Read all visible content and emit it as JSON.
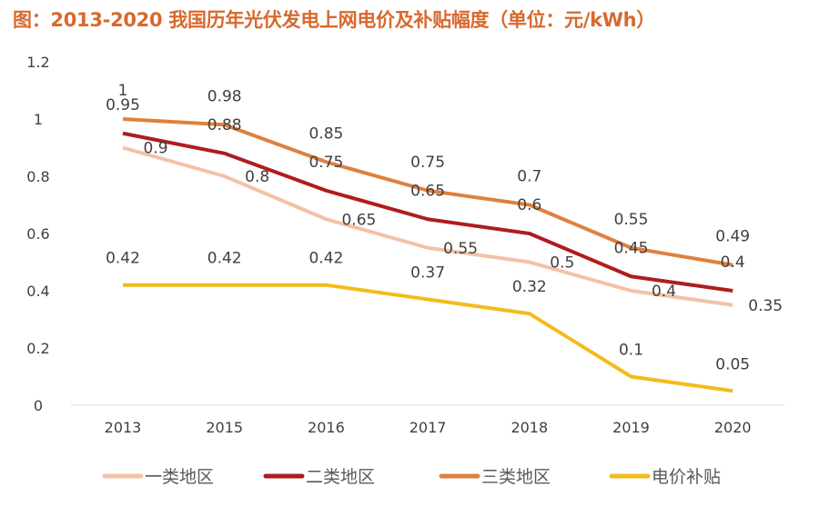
{
  "chart_data": {
    "type": "line",
    "title": "图：2013-2020 我国历年光伏发电上网电价及补贴幅度（单位：元/kWh）",
    "categories": [
      "2013",
      "2015",
      "2016",
      "2017",
      "2018",
      "2019",
      "2020"
    ],
    "ylim": [
      0,
      1.2
    ],
    "yticks": [
      "0",
      "0.2",
      "0.4",
      "0.6",
      "0.8",
      "1",
      "1.2"
    ],
    "grid": false,
    "legend": "bottom",
    "series": [
      {
        "name": "一类地区",
        "color": "#f2c2a6",
        "values": [
          0.9,
          0.8,
          0.65,
          0.55,
          0.5,
          0.4,
          0.35
        ],
        "labels": [
          "0.9",
          "0.8",
          "0.65",
          "0.55",
          "0.5",
          "0.4",
          "0.35"
        ]
      },
      {
        "name": "二类地区",
        "color": "#b01c1c",
        "values": [
          0.95,
          0.88,
          0.75,
          0.65,
          0.6,
          0.45,
          0.4
        ],
        "labels": [
          "0.95",
          "0.88",
          "0.75",
          "0.65",
          "0.6",
          "0.45",
          "0.4"
        ]
      },
      {
        "name": "三类地区",
        "color": "#e0803e",
        "values": [
          1,
          0.98,
          0.85,
          0.75,
          0.7,
          0.55,
          0.49
        ],
        "labels": [
          "1",
          "0.98",
          "0.85",
          "0.75",
          "0.7",
          "0.55",
          "0.49"
        ]
      },
      {
        "name": "电价补贴",
        "color": "#f2bc1b",
        "values": [
          0.42,
          0.42,
          0.42,
          0.37,
          0.32,
          0.1,
          0.05
        ],
        "labels": [
          "0.42",
          "0.42",
          "0.42",
          "0.37",
          "0.32",
          "0.1",
          "0.05"
        ]
      }
    ]
  }
}
